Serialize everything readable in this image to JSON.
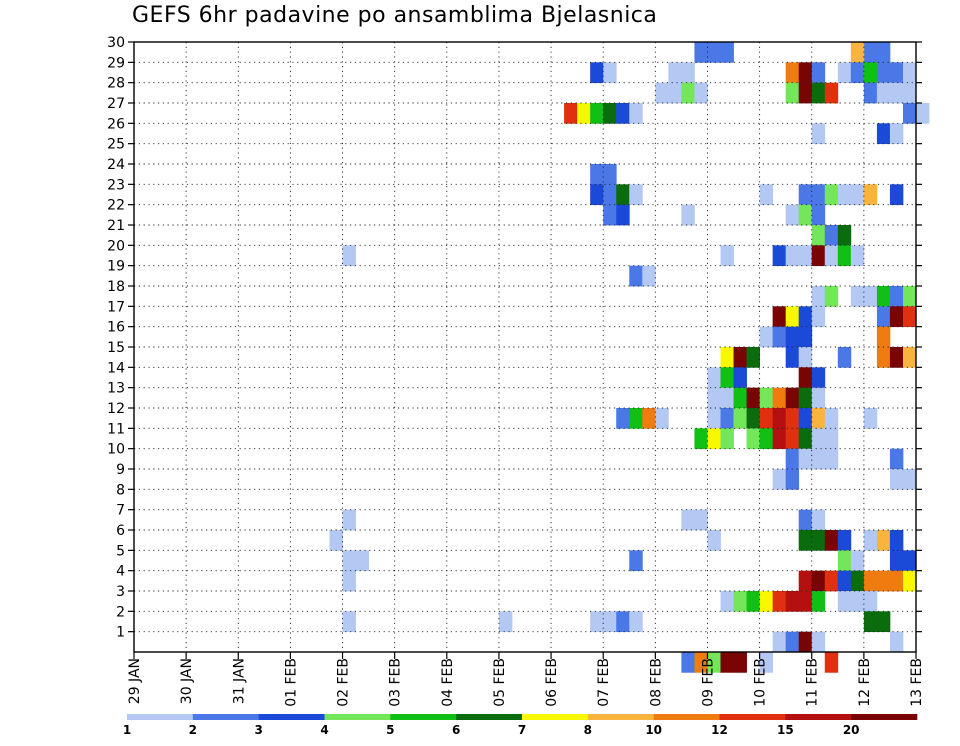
{
  "chart_data": {
    "type": "heatmap",
    "title": "GEFS 6hr padavine po ansamblima Bjelasnica",
    "xlabel": "",
    "ylabel": "",
    "x_ticks": [
      "29 JAN",
      "30 JAN",
      "31 JAN",
      "01 FEB",
      "02 FEB",
      "03 FEB",
      "04 FEB",
      "05 FEB",
      "06 FEB",
      "07 FEB",
      "08 FEB",
      "09 FEB",
      "10 FEB",
      "11 FEB",
      "12 FEB",
      "13 FEB"
    ],
    "y_ticks": [
      1,
      2,
      3,
      4,
      5,
      6,
      7,
      8,
      9,
      10,
      11,
      12,
      13,
      14,
      15,
      16,
      17,
      18,
      19,
      20,
      21,
      22,
      23,
      24,
      25,
      26,
      27,
      28,
      29,
      30
    ],
    "ylim": [
      0,
      30
    ],
    "x_steps": 60,
    "grid": true,
    "colorbar": {
      "labels": [
        "1",
        "2",
        "3",
        "4",
        "5",
        "6",
        "7",
        "8",
        "10",
        "12",
        "15",
        "20"
      ],
      "colors": [
        "#b4c8f4",
        "#4a78e6",
        "#1c4ad8",
        "#74e65a",
        "#10c014",
        "#0a6c0c",
        "#f8f800",
        "#f8b43c",
        "#f07c10",
        "#e03010",
        "#b41010",
        "#780404"
      ]
    },
    "cells": [
      [
        43,
        29,
        1
      ],
      [
        44,
        29,
        1
      ],
      [
        45,
        29,
        1
      ],
      [
        56,
        29,
        1
      ],
      [
        57,
        29,
        1
      ],
      [
        55,
        29,
        7
      ],
      [
        35,
        28,
        2
      ],
      [
        36,
        28,
        0
      ],
      [
        41,
        28,
        0
      ],
      [
        42,
        28,
        0
      ],
      [
        50,
        28,
        8
      ],
      [
        51,
        28,
        11
      ],
      [
        52,
        28,
        1
      ],
      [
        54,
        28,
        0
      ],
      [
        55,
        28,
        1
      ],
      [
        56,
        28,
        4
      ],
      [
        57,
        28,
        1
      ],
      [
        58,
        28,
        1
      ],
      [
        59,
        28,
        0
      ],
      [
        40,
        27,
        0
      ],
      [
        41,
        27,
        0
      ],
      [
        42,
        27,
        3
      ],
      [
        43,
        27,
        0
      ],
      [
        50,
        27,
        3
      ],
      [
        51,
        27,
        11
      ],
      [
        52,
        27,
        5
      ],
      [
        53,
        27,
        9
      ],
      [
        56,
        27,
        1
      ],
      [
        57,
        27,
        0
      ],
      [
        58,
        27,
        0
      ],
      [
        59,
        27,
        0
      ],
      [
        33,
        26,
        9
      ],
      [
        34,
        26,
        6
      ],
      [
        35,
        26,
        4
      ],
      [
        36,
        26,
        5
      ],
      [
        37,
        26,
        2
      ],
      [
        38,
        26,
        0
      ],
      [
        59,
        26,
        1
      ],
      [
        60,
        26,
        0
      ],
      [
        52,
        25,
        0
      ],
      [
        57,
        25,
        2
      ],
      [
        58,
        25,
        0
      ],
      [
        35,
        23,
        1
      ],
      [
        36,
        23,
        1
      ],
      [
        35,
        22,
        2
      ],
      [
        36,
        22,
        1
      ],
      [
        37,
        22,
        5
      ],
      [
        38,
        22,
        0
      ],
      [
        48,
        22,
        0
      ],
      [
        51,
        22,
        1
      ],
      [
        52,
        22,
        1
      ],
      [
        53,
        22,
        3
      ],
      [
        54,
        22,
        0
      ],
      [
        55,
        22,
        0
      ],
      [
        56,
        22,
        7
      ],
      [
        58,
        22,
        2
      ],
      [
        36,
        21,
        1
      ],
      [
        37,
        21,
        2
      ],
      [
        42,
        21,
        0
      ],
      [
        50,
        21,
        0
      ],
      [
        51,
        21,
        3
      ],
      [
        52,
        21,
        1
      ],
      [
        52,
        20,
        3
      ],
      [
        53,
        20,
        1
      ],
      [
        54,
        20,
        5
      ],
      [
        16,
        19,
        0
      ],
      [
        45,
        19,
        0
      ],
      [
        49,
        19,
        2
      ],
      [
        50,
        19,
        0
      ],
      [
        51,
        19,
        0
      ],
      [
        52,
        19,
        11
      ],
      [
        53,
        19,
        0
      ],
      [
        54,
        19,
        4
      ],
      [
        55,
        19,
        0
      ],
      [
        38,
        18,
        1
      ],
      [
        39,
        18,
        0
      ],
      [
        52,
        17,
        0
      ],
      [
        53,
        17,
        3
      ],
      [
        55,
        17,
        0
      ],
      [
        56,
        17,
        0
      ],
      [
        57,
        17,
        4
      ],
      [
        58,
        17,
        1
      ],
      [
        59,
        17,
        3
      ],
      [
        49,
        16,
        11
      ],
      [
        50,
        16,
        6
      ],
      [
        51,
        16,
        2
      ],
      [
        52,
        16,
        0
      ],
      [
        57,
        16,
        1
      ],
      [
        58,
        16,
        11
      ],
      [
        59,
        16,
        9
      ],
      [
        48,
        15,
        0
      ],
      [
        49,
        15,
        1
      ],
      [
        50,
        15,
        2
      ],
      [
        51,
        15,
        2
      ],
      [
        57,
        15,
        8
      ],
      [
        45,
        14,
        6
      ],
      [
        46,
        14,
        11
      ],
      [
        47,
        14,
        5
      ],
      [
        50,
        14,
        2
      ],
      [
        51,
        14,
        0
      ],
      [
        54,
        14,
        1
      ],
      [
        57,
        14,
        8
      ],
      [
        58,
        14,
        11
      ],
      [
        59,
        14,
        7
      ],
      [
        44,
        13,
        0
      ],
      [
        45,
        13,
        4
      ],
      [
        46,
        13,
        2
      ],
      [
        51,
        13,
        11
      ],
      [
        52,
        13,
        2
      ],
      [
        44,
        12,
        0
      ],
      [
        45,
        12,
        0
      ],
      [
        46,
        12,
        4
      ],
      [
        47,
        12,
        11
      ],
      [
        48,
        12,
        3
      ],
      [
        49,
        12,
        8
      ],
      [
        50,
        12,
        11
      ],
      [
        51,
        12,
        5
      ],
      [
        52,
        12,
        0
      ],
      [
        37,
        11,
        1
      ],
      [
        38,
        11,
        4
      ],
      [
        39,
        11,
        8
      ],
      [
        40,
        11,
        0
      ],
      [
        44,
        11,
        0
      ],
      [
        45,
        11,
        1
      ],
      [
        46,
        11,
        3
      ],
      [
        47,
        11,
        5
      ],
      [
        48,
        11,
        9
      ],
      [
        49,
        11,
        10
      ],
      [
        50,
        11,
        9
      ],
      [
        51,
        11,
        2
      ],
      [
        52,
        11,
        7
      ],
      [
        53,
        11,
        0
      ],
      [
        56,
        11,
        0
      ],
      [
        43,
        10,
        4
      ],
      [
        44,
        10,
        6
      ],
      [
        45,
        10,
        3
      ],
      [
        47,
        10,
        3
      ],
      [
        48,
        10,
        4
      ],
      [
        49,
        10,
        10
      ],
      [
        50,
        10,
        9
      ],
      [
        51,
        10,
        5
      ],
      [
        52,
        10,
        0
      ],
      [
        53,
        10,
        0
      ],
      [
        50,
        9,
        1
      ],
      [
        51,
        9,
        0
      ],
      [
        52,
        9,
        0
      ],
      [
        53,
        9,
        0
      ],
      [
        58,
        9,
        1
      ],
      [
        49,
        8,
        0
      ],
      [
        50,
        8,
        1
      ],
      [
        58,
        8,
        0
      ],
      [
        59,
        8,
        0
      ],
      [
        16,
        6,
        0
      ],
      [
        42,
        6,
        0
      ],
      [
        43,
        6,
        0
      ],
      [
        51,
        6,
        1
      ],
      [
        52,
        6,
        0
      ],
      [
        15,
        5,
        0
      ],
      [
        44,
        5,
        0
      ],
      [
        51,
        5,
        5
      ],
      [
        52,
        5,
        5
      ],
      [
        53,
        5,
        11
      ],
      [
        54,
        5,
        2
      ],
      [
        56,
        5,
        0
      ],
      [
        57,
        5,
        7
      ],
      [
        58,
        5,
        2
      ],
      [
        16,
        4,
        0
      ],
      [
        17,
        4,
        0
      ],
      [
        38,
        4,
        1
      ],
      [
        54,
        4,
        3
      ],
      [
        55,
        4,
        0
      ],
      [
        58,
        4,
        2
      ],
      [
        59,
        4,
        2
      ],
      [
        16,
        3,
        0
      ],
      [
        51,
        3,
        10
      ],
      [
        52,
        3,
        11
      ],
      [
        53,
        3,
        9
      ],
      [
        54,
        3,
        2
      ],
      [
        55,
        3,
        5
      ],
      [
        56,
        3,
        8
      ],
      [
        57,
        3,
        8
      ],
      [
        58,
        3,
        8
      ],
      [
        59,
        3,
        6
      ],
      [
        45,
        2,
        0
      ],
      [
        46,
        2,
        3
      ],
      [
        47,
        2,
        4
      ],
      [
        48,
        2,
        6
      ],
      [
        49,
        2,
        9
      ],
      [
        50,
        2,
        10
      ],
      [
        51,
        2,
        10
      ],
      [
        52,
        2,
        4
      ],
      [
        54,
        2,
        0
      ],
      [
        55,
        2,
        0
      ],
      [
        56,
        2,
        0
      ],
      [
        16,
        1,
        0
      ],
      [
        28,
        1,
        0
      ],
      [
        35,
        1,
        0
      ],
      [
        36,
        1,
        0
      ],
      [
        37,
        1,
        1
      ],
      [
        38,
        1,
        0
      ],
      [
        56,
        1,
        5
      ],
      [
        57,
        1,
        5
      ],
      [
        49,
        0,
        0
      ],
      [
        50,
        0,
        1
      ],
      [
        51,
        0,
        11
      ],
      [
        52,
        0,
        0
      ],
      [
        58,
        0,
        0
      ],
      [
        42,
        -1,
        1
      ],
      [
        43,
        -1,
        8
      ],
      [
        44,
        -1,
        3
      ],
      [
        45,
        -1,
        11
      ],
      [
        46,
        -1,
        11
      ],
      [
        48,
        -1,
        0
      ],
      [
        53,
        -1,
        9
      ]
    ]
  }
}
